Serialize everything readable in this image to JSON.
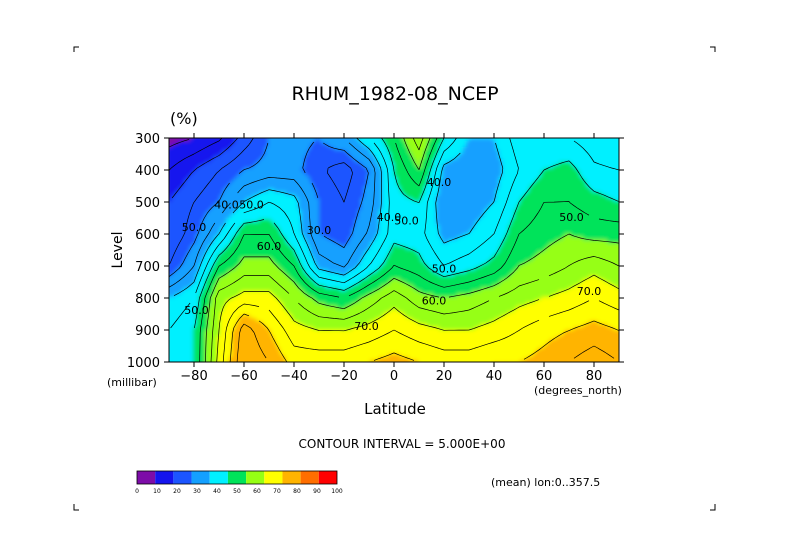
{
  "chart_data": {
    "type": "heatmap",
    "subtype": "filled-contour",
    "title": "RHUM_1982-08_NCEP",
    "units": "(%)",
    "xlabel": "Latitude",
    "xunit": "(degrees_north)",
    "ylabel": "Level",
    "yunit": "(millibar)",
    "annotation": "CONTOUR INTERVAL = 5.000E+00",
    "note": "(mean) lon:0..357.5",
    "xlim": [
      -90,
      90
    ],
    "ylim": [
      1000,
      300
    ],
    "x_ticks": [
      -80,
      -60,
      -40,
      -20,
      0,
      20,
      40,
      60,
      80
    ],
    "y_ticks": [
      300,
      400,
      500,
      600,
      700,
      800,
      900,
      1000
    ],
    "contour_interval": 5,
    "contour_labels": [
      {
        "text": "40.0",
        "x": -67,
        "y": 520
      },
      {
        "text": "50.0",
        "x": -57,
        "y": 520
      },
      {
        "text": "60.0",
        "x": -50,
        "y": 650
      },
      {
        "text": "30.0",
        "x": -30,
        "y": 600
      },
      {
        "text": "40.0",
        "x": -2,
        "y": 560
      },
      {
        "text": "50.0",
        "x": 5,
        "y": 570
      },
      {
        "text": "40.0",
        "x": 18,
        "y": 450
      },
      {
        "text": "50.0",
        "x": 20,
        "y": 720
      },
      {
        "text": "60.0",
        "x": 16,
        "y": 820
      },
      {
        "text": "70.0",
        "x": -11,
        "y": 900
      },
      {
        "text": "50.0",
        "x": 71,
        "y": 560
      },
      {
        "text": "70.0",
        "x": 78,
        "y": 790
      },
      {
        "text": "50.0",
        "x": -80,
        "y": 590
      },
      {
        "text": "50.0",
        "x": -79,
        "y": 850
      }
    ],
    "field": {
      "lats": [
        -90,
        -80,
        -70,
        -60,
        -50,
        -40,
        -30,
        -20,
        -10,
        0,
        10,
        20,
        30,
        40,
        50,
        60,
        70,
        80,
        90
      ],
      "levels": [
        300,
        400,
        500,
        600,
        700,
        800,
        900,
        1000
      ],
      "values": [
        [
          8,
          10,
          14,
          22,
          30,
          32,
          30,
          35,
          45,
          55,
          68,
          50,
          40,
          40,
          48,
          45,
          45,
          42,
          40
        ],
        [
          15,
          20,
          25,
          30,
          32,
          32,
          26,
          22,
          30,
          50,
          60,
          38,
          35,
          37,
          45,
          50,
          52,
          46,
          45
        ],
        [
          20,
          25,
          30,
          40,
          45,
          42,
          30,
          25,
          32,
          48,
          50,
          35,
          36,
          40,
          50,
          55,
          55,
          52,
          50
        ],
        [
          20,
          28,
          40,
          55,
          55,
          45,
          30,
          27,
          36,
          48,
          47,
          38,
          40,
          45,
          55,
          58,
          60,
          58,
          58
        ],
        [
          25,
          35,
          55,
          62,
          62,
          55,
          38,
          34,
          45,
          55,
          52,
          45,
          48,
          52,
          60,
          62,
          65,
          68,
          65
        ],
        [
          40,
          45,
          68,
          72,
          72,
          65,
          58,
          55,
          62,
          68,
          62,
          60,
          62,
          65,
          68,
          70,
          72,
          75,
          72
        ],
        [
          45,
          50,
          70,
          88,
          80,
          72,
          70,
          70,
          72,
          75,
          72,
          70,
          70,
          72,
          75,
          78,
          80,
          82,
          80
        ],
        [
          45,
          50,
          72,
          90,
          85,
          78,
          78,
          78,
          80,
          82,
          80,
          78,
          78,
          80,
          80,
          82,
          85,
          88,
          85
        ]
      ]
    },
    "colorbar": {
      "ticks": [
        "0",
        "10",
        "20",
        "30",
        "40",
        "50",
        "60",
        "70",
        "80",
        "90",
        "100"
      ],
      "colors": [
        "#7d0ca8",
        "#1414ee",
        "#1c55ff",
        "#14a0ff",
        "#00f0ff",
        "#00e35a",
        "#96ff14",
        "#ffff00",
        "#ffb400",
        "#ff6e00",
        "#ff0000"
      ]
    }
  }
}
